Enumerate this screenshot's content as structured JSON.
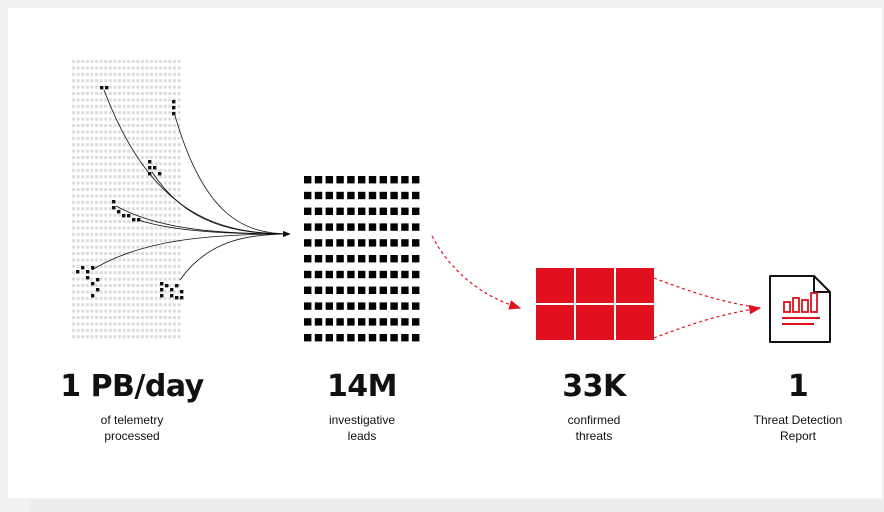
{
  "colors": {
    "accent": "#e0101e",
    "dark": "#111111",
    "grid": "#dddddd",
    "cell": "#000000"
  },
  "stages": [
    {
      "value": "1 PB/day",
      "caption": [
        "of telemetry",
        "processed"
      ]
    },
    {
      "value": "14M",
      "caption": [
        "investigative",
        "leads"
      ]
    },
    {
      "value": "33K",
      "caption": [
        "confirmed",
        "threats"
      ]
    },
    {
      "value": "1",
      "caption": [
        "Threat Detection",
        "Report"
      ]
    }
  ],
  "icons": {
    "telemetry": "telemetry-dot-grid-icon",
    "leads": "leads-square-grid-icon",
    "threats": "threats-red-block-icon",
    "report": "report-document-chart-icon"
  }
}
